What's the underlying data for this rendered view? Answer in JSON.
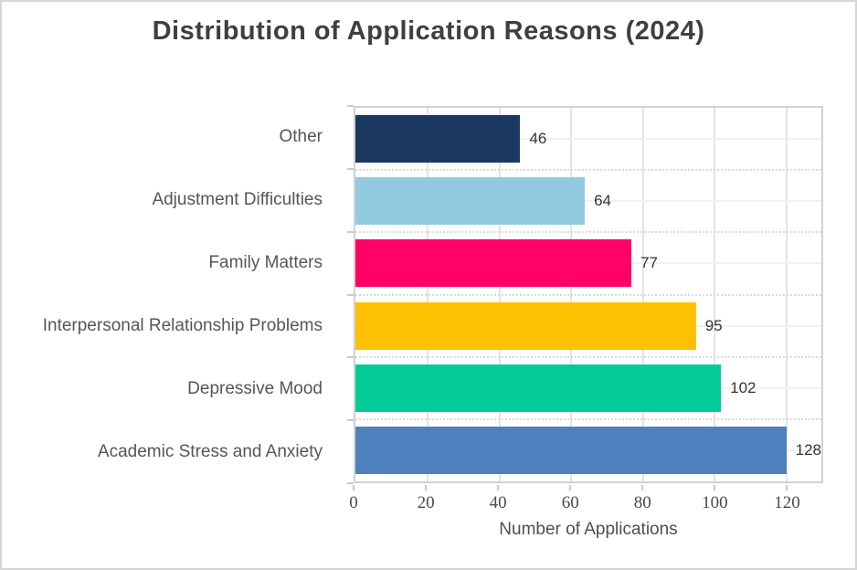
{
  "chart_data": {
    "type": "bar",
    "orientation": "horizontal",
    "title": "Distribution of Application Reasons (2024)",
    "xlabel": "Number of Applications",
    "ylabel": "",
    "categories": [
      "Other",
      "Adjustment Difficulties",
      "Family Matters",
      "Interpersonal Relationship Problems",
      "Depressive Mood",
      "Academic Stress and Anxiety"
    ],
    "values": [
      46,
      64,
      77,
      95,
      102,
      128
    ],
    "value_labels": [
      "46",
      "64",
      "77",
      "95",
      "102",
      "128"
    ],
    "bar_colors": [
      "#1a3861",
      "#92cbdf",
      "#ff0266",
      "#fdc101",
      "#02cb98",
      "#4d80bd"
    ],
    "xlim": [
      0,
      130
    ],
    "xticks": [
      0,
      20,
      40,
      60,
      80,
      100,
      120
    ],
    "legend": "none",
    "grid": {
      "vertical_major": "solid",
      "horizontal_row_center": "solid",
      "horizontal_row_boundary": "dotted"
    }
  },
  "colors": {
    "title_text": "#3f3f3f",
    "category_text": "#565656",
    "value_text": "#333333",
    "tick_text": "#4a4a4a",
    "panel_border": "#d2d2d2",
    "grid_line": "#e3e3e3"
  }
}
